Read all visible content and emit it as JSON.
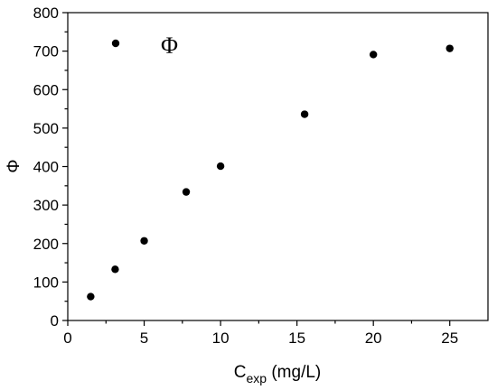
{
  "chart_data": {
    "type": "scatter",
    "title": "",
    "xlabel_main": "C",
    "xlabel_sub": "exp",
    "xlabel_unit": " (mg/L)",
    "ylabel": "Φ",
    "xlim": [
      0,
      27.5
    ],
    "ylim": [
      0,
      800
    ],
    "xticks": [
      0,
      5,
      10,
      15,
      20,
      25
    ],
    "yticks": [
      0,
      100,
      200,
      300,
      400,
      500,
      600,
      700,
      800
    ],
    "grid": false,
    "legend_position": "top-left",
    "series": [
      {
        "name": "Φ",
        "marker": "circle",
        "color": "#000000",
        "x": [
          1.5,
          3.1,
          5.0,
          7.75,
          10.0,
          15.5,
          20.0,
          25.0
        ],
        "y": [
          62,
          133,
          207,
          334,
          401,
          536,
          691,
          707
        ]
      }
    ]
  }
}
